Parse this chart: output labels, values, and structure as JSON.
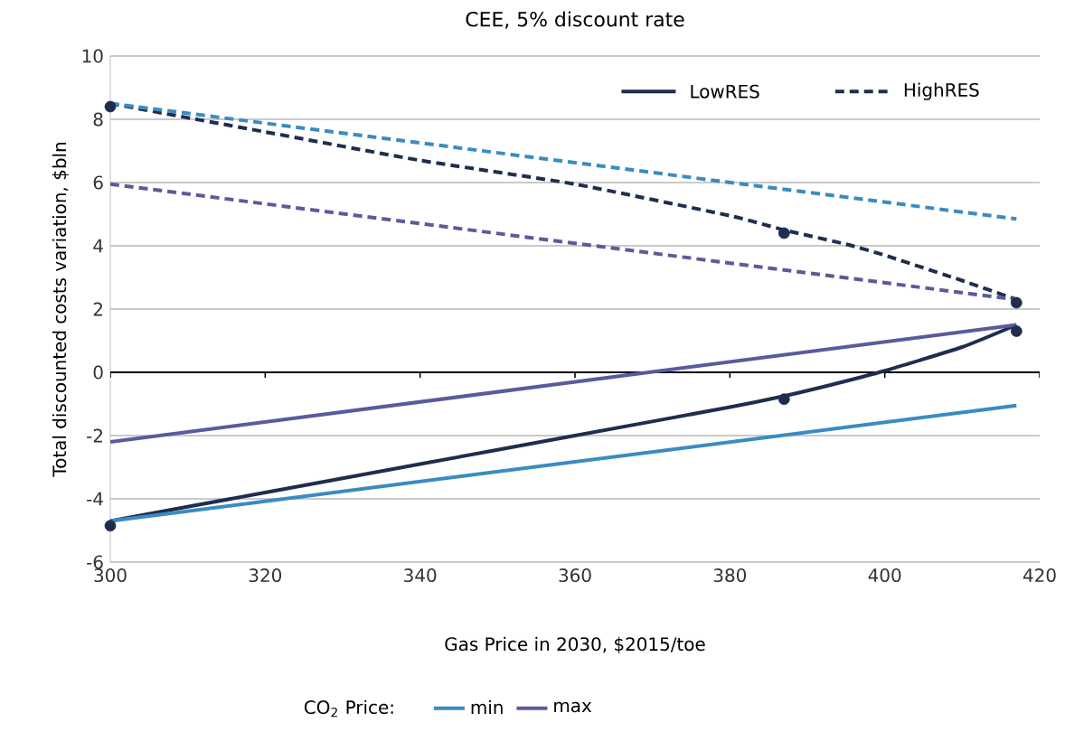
{
  "chart_data": {
    "type": "line",
    "title": "CEE, 5% discount rate",
    "xlabel": "Gas Price in 2030, $2015/toe",
    "ylabel": "Total discounted costs variation, $bln",
    "legend_title": "CO$_{2}$ Price:",
    "xlim": [
      300,
      420
    ],
    "ylim": [
      -6,
      10
    ],
    "xticks": [
      300,
      320,
      340,
      360,
      380,
      400,
      420
    ],
    "yticks": [
      -6,
      -4,
      -2,
      0,
      2,
      4,
      6,
      8,
      10
    ],
    "grid": "y",
    "legend": "bottom",
    "series": [
      {
        "name": "LowRES",
        "color": "#1f2d4e",
        "line_style": "solid",
        "x": [
          300,
          320,
          340,
          360,
          380,
          387,
          393,
          400,
          410,
          417
        ],
        "values": [
          -4.7,
          -3.8,
          -2.9,
          -2.0,
          -1.1,
          -0.75,
          -0.4,
          0.05,
          0.8,
          1.5
        ]
      },
      {
        "name": "HighRES",
        "color": "#1f2d4e",
        "line_style": "dashed",
        "x": [
          300,
          320,
          340,
          360,
          380,
          387,
          395,
          400,
          410,
          417
        ],
        "values": [
          8.5,
          7.6,
          6.7,
          5.95,
          4.95,
          4.5,
          4.05,
          3.7,
          2.9,
          2.3
        ]
      },
      {
        "name": "min",
        "color": "#3b8bc2",
        "x": [
          300,
          417
        ],
        "values": [
          -4.7,
          -1.05
        ]
      },
      {
        "name": "max",
        "color": "#5a5b9c",
        "x": [
          300,
          417
        ],
        "values": [
          -2.2,
          1.5
        ]
      },
      {
        "color": "#3b8bc2",
        "line_style": "dashed",
        "x": [
          300,
          417
        ],
        "values": [
          8.5,
          4.85
        ]
      },
      {
        "color": "#5a5b9c",
        "line_style": "dashed",
        "x": [
          300,
          417
        ],
        "values": [
          5.95,
          2.3
        ]
      },
      {
        "type": "scatter",
        "color": "#1f2d4e",
        "marker": "circle",
        "x": [
          300,
          387,
          417
        ],
        "values": [
          -4.85,
          -0.85,
          1.3
        ]
      },
      {
        "type": "scatter",
        "color": "#1f2d4e",
        "marker": "circle",
        "x": [
          300,
          387,
          417
        ],
        "values": [
          8.4,
          4.4,
          2.2
        ]
      }
    ]
  }
}
